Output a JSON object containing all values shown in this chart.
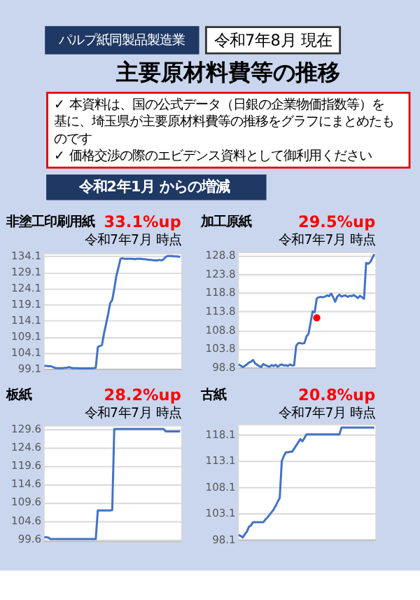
{
  "chart_data": [
    {
      "type": "other",
      "title": "主要原材料費等の推移",
      "annotations": [
        "パルプ紙同製品製造業",
        "令和7年8月 現在",
        "✓ 本資料は、国の公式データ（日銀の企業物価指数等）を基に、埼玉県が主要原材料費等の推移をグラフにまとめたものです",
        "✓ 価格交渉の際のエビデンス資料として御利用ください",
        "令和2年1月 からの増減"
      ]
    },
    {
      "type": "line",
      "title": "非塗工印刷用紙",
      "annotations": [
        "33.1%up",
        "令和7年7月 時点"
      ],
      "categories": [
        null,
        null,
        null,
        null,
        null,
        null,
        null,
        null,
        null,
        null,
        null,
        null,
        null,
        null,
        null,
        null,
        null,
        null,
        null,
        null,
        null,
        null,
        null,
        null,
        null,
        null,
        null,
        null,
        null,
        null,
        null,
        null,
        null,
        null,
        null,
        null,
        null,
        null,
        null,
        null,
        null,
        null,
        null,
        null,
        null,
        null,
        null,
        null,
        null,
        null,
        null,
        null,
        null,
        null,
        null,
        null,
        null,
        null,
        null,
        null,
        null,
        null,
        null,
        null,
        null,
        null,
        null
      ],
      "series": [
        {
          "type": "line",
          "color": "#4472c4",
          "values": [
            100.0,
            100.0,
            99.9,
            99.9,
            99.7,
            99.4,
            99.3,
            99.3,
            99.3,
            99.3,
            99.4,
            99.4,
            99.6,
            99.4,
            99.3,
            99.3,
            99.3,
            99.2,
            99.2,
            99.2,
            99.2,
            99.2,
            99.2,
            99.2,
            99.3,
            99.4,
            105.8,
            106.2,
            106.5,
            110.0,
            113.0,
            116.0,
            119.5,
            120.5,
            124.0,
            128.0,
            130.5,
            133.3,
            133.5,
            133.3,
            133.3,
            133.3,
            133.3,
            133.3,
            133.2,
            133.3,
            133.3,
            133.3,
            133.2,
            133.2,
            133.1,
            133.0,
            133.0,
            132.9,
            132.8,
            132.8,
            133.0,
            132.8,
            133.2,
            133.9,
            134.2,
            134.2,
            134.2,
            134.1,
            134.1,
            134.0,
            133.9
          ]
        }
      ],
      "ylim": [
        99.1,
        135.1
      ],
      "yticks": [
        99.1,
        104.1,
        109.1,
        114.1,
        119.1,
        124.1,
        129.1,
        134.1
      ],
      "grid": "y",
      "tick_labels": "y"
    },
    {
      "type": "line",
      "title": "加工原紙",
      "annotations": [
        "29.5%up",
        "令和7年7月 時点"
      ],
      "categories": [
        null,
        null,
        null,
        null,
        null,
        null,
        null,
        null,
        null,
        null,
        null,
        null,
        null,
        null,
        null,
        null,
        null,
        null,
        null,
        null,
        null,
        null,
        null,
        null,
        null,
        null,
        null,
        null,
        null,
        null,
        null,
        null,
        null,
        null,
        null,
        null,
        null,
        null,
        null,
        null,
        null,
        null,
        null,
        null,
        null,
        null,
        null,
        null,
        null,
        null,
        null,
        null,
        null,
        null,
        null,
        null,
        null,
        null,
        null,
        null,
        null,
        null,
        null,
        null,
        null,
        null,
        null
      ],
      "series": [
        {
          "type": "line",
          "color": "#4472c4",
          "values": [
            99.6,
            99.3,
            98.9,
            99.2,
            99.6,
            100.1,
            100.3,
            100.8,
            99.9,
            99.5,
            99.2,
            98.9,
            99.7,
            99.4,
            99.2,
            99.0,
            99.4,
            99.2,
            99.5,
            99.0,
            99.4,
            99.6,
            99.3,
            99.4,
            99.2,
            99.6,
            99.3,
            99.4,
            104.6,
            105.3,
            105.3,
            105.2,
            105.3,
            107.1,
            107.8,
            110.8,
            113.8,
            113.6,
            117.3,
            117.6,
            117.7,
            117.6,
            117.8,
            118.1,
            117.9,
            118.6,
            117.6,
            116.4,
            117.8,
            118.3,
            117.8,
            118.0,
            118.1,
            117.7,
            118.0,
            117.9,
            118.2,
            117.8,
            117.4,
            118.0,
            117.6,
            117.2,
            126.8,
            126.6,
            127.0,
            128.1,
            129.2
          ]
        },
        {
          "type": "scatter",
          "color": "#ff0000",
          "values": [
            null,
            null,
            null,
            null,
            null,
            null,
            null,
            null,
            null,
            null,
            null,
            null,
            null,
            null,
            null,
            null,
            null,
            null,
            null,
            null,
            null,
            null,
            null,
            null,
            null,
            null,
            null,
            null,
            null,
            null,
            null,
            null,
            null,
            null,
            null,
            null,
            null,
            null,
            112.1,
            null,
            null,
            null,
            null,
            null,
            null,
            null,
            null,
            null,
            null,
            null,
            null,
            null,
            null,
            null,
            null,
            null,
            null,
            null,
            null,
            null,
            null,
            null,
            null,
            null,
            null,
            null,
            null
          ]
        }
      ],
      "ylim": [
        98.8,
        129.8
      ],
      "yticks": [
        98.8,
        103.8,
        108.8,
        113.8,
        118.8,
        123.8,
        128.8
      ],
      "grid": "y",
      "tick_labels": "y"
    },
    {
      "type": "line",
      "title": "板紙",
      "annotations": [
        "28.2%up",
        "令和7年7月 時点"
      ],
      "categories": [
        null,
        null,
        null,
        null,
        null,
        null,
        null,
        null,
        null,
        null,
        null,
        null,
        null,
        null,
        null,
        null,
        null,
        null,
        null,
        null,
        null,
        null,
        null,
        null,
        null,
        null,
        null,
        null,
        null,
        null,
        null,
        null,
        null,
        null,
        null,
        null,
        null,
        null,
        null,
        null,
        null,
        null,
        null,
        null,
        null,
        null,
        null,
        null,
        null,
        null,
        null,
        null,
        null,
        null,
        null,
        null,
        null,
        null,
        null,
        null,
        null,
        null,
        null,
        null,
        null,
        null,
        null
      ],
      "series": [
        {
          "type": "line",
          "color": "#4472c4",
          "values": [
            100.1,
            100.1,
            100.0,
            99.6,
            99.6,
            99.6,
            99.6,
            99.6,
            99.6,
            99.6,
            99.6,
            99.6,
            99.6,
            99.6,
            99.6,
            99.6,
            99.6,
            99.6,
            99.6,
            99.6,
            99.6,
            99.6,
            99.6,
            99.6,
            99.6,
            99.6,
            107.4,
            107.4,
            107.4,
            107.4,
            107.4,
            107.4,
            107.4,
            107.5,
            129.6,
            129.6,
            129.6,
            129.6,
            129.6,
            129.6,
            129.6,
            129.6,
            129.6,
            129.6,
            129.6,
            129.6,
            129.6,
            129.6,
            129.6,
            129.6,
            129.6,
            129.6,
            129.6,
            129.6,
            129.6,
            129.6,
            129.6,
            129.6,
            129.6,
            128.9,
            128.9,
            128.9,
            128.9,
            128.9,
            128.9,
            128.9,
            128.9
          ]
        }
      ],
      "ylim": [
        99.1,
        130.6
      ],
      "yticks": [
        99.6,
        104.6,
        109.6,
        114.6,
        119.6,
        124.6,
        129.6
      ],
      "grid": "y",
      "tick_labels": "y"
    },
    {
      "type": "line",
      "title": "古紙",
      "annotations": [
        "20.8%up",
        "令和7年7月 時点"
      ],
      "categories": [
        null,
        null,
        null,
        null,
        null,
        null,
        null,
        null,
        null,
        null,
        null,
        null,
        null,
        null,
        null,
        null,
        null,
        null,
        null,
        null,
        null,
        null,
        null,
        null,
        null,
        null,
        null,
        null,
        null,
        null,
        null,
        null,
        null,
        null,
        null,
        null,
        null,
        null,
        null,
        null,
        null,
        null,
        null,
        null,
        null,
        null,
        null,
        null,
        null,
        null,
        null,
        null,
        null,
        null,
        null,
        null,
        null,
        null,
        null,
        null,
        null,
        null,
        null,
        null,
        null,
        null,
        null
      ],
      "series": [
        {
          "type": "line",
          "color": "#4472c4",
          "values": [
            99.0,
            98.8,
            98.5,
            99.1,
            99.6,
            100.5,
            100.8,
            101.4,
            101.4,
            101.4,
            101.4,
            101.4,
            101.4,
            101.9,
            102.3,
            102.8,
            103.3,
            103.8,
            104.5,
            105.3,
            106.0,
            113.0,
            114.0,
            114.7,
            114.7,
            114.8,
            114.8,
            115.4,
            116.0,
            116.6,
            117.2,
            116.8,
            117.4,
            118.1,
            118.1,
            118.1,
            118.1,
            118.1,
            118.1,
            118.1,
            118.1,
            118.1,
            118.1,
            118.1,
            118.1,
            118.1,
            118.1,
            118.1,
            118.1,
            118.1,
            119.4,
            119.4,
            119.4,
            119.4,
            119.4,
            119.4,
            119.4,
            119.4,
            119.4,
            119.4,
            119.4,
            119.4,
            119.4,
            119.4,
            119.4,
            119.4,
            119.4
          ]
        }
      ],
      "ylim": [
        98.1,
        120.1
      ],
      "yticks": [
        98.1,
        103.1,
        108.1,
        113.1,
        118.1
      ],
      "grid": "y",
      "tick_labels": "y"
    }
  ]
}
